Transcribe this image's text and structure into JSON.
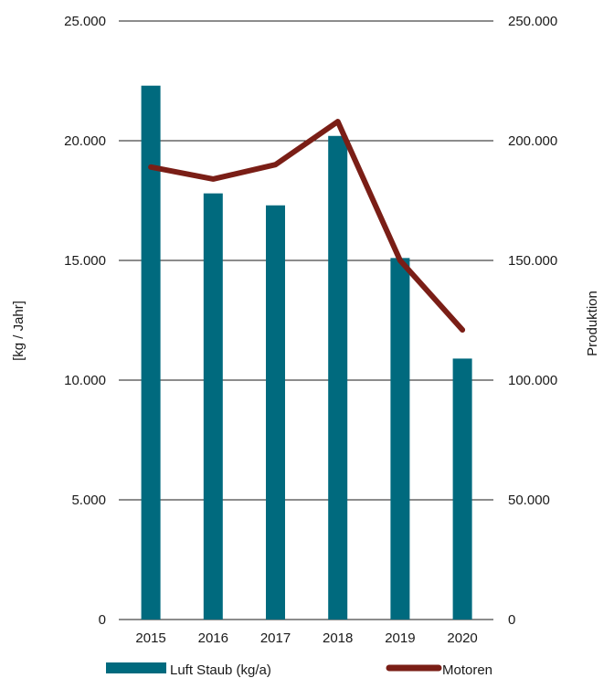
{
  "chart_data": {
    "type": "bar",
    "categories": [
      "2015",
      "2016",
      "2017",
      "2018",
      "2019",
      "2020"
    ],
    "series": [
      {
        "name": "Luft Staub (kg/a)",
        "type": "bar",
        "axis": "left",
        "color": "#006a7e",
        "values": [
          22300,
          17800,
          17300,
          20200,
          15100,
          10900
        ]
      },
      {
        "name": "Motoren",
        "type": "line",
        "axis": "right",
        "color": "#7a1e16",
        "values": [
          189000,
          184000,
          190000,
          208000,
          150000,
          121000
        ]
      }
    ],
    "ylabel": "[kg / Jahr]",
    "y2label": "Produktion",
    "ylim": [
      0,
      25000
    ],
    "y2lim": [
      0,
      250000
    ],
    "yticks": [
      "0",
      "5.000",
      "10.000",
      "15.000",
      "20.000",
      "25.000"
    ],
    "y2ticks": [
      "0",
      "50.000",
      "100.000",
      "150.000",
      "200.000",
      "250.000"
    ],
    "grid": true,
    "legend_position": "bottom"
  }
}
